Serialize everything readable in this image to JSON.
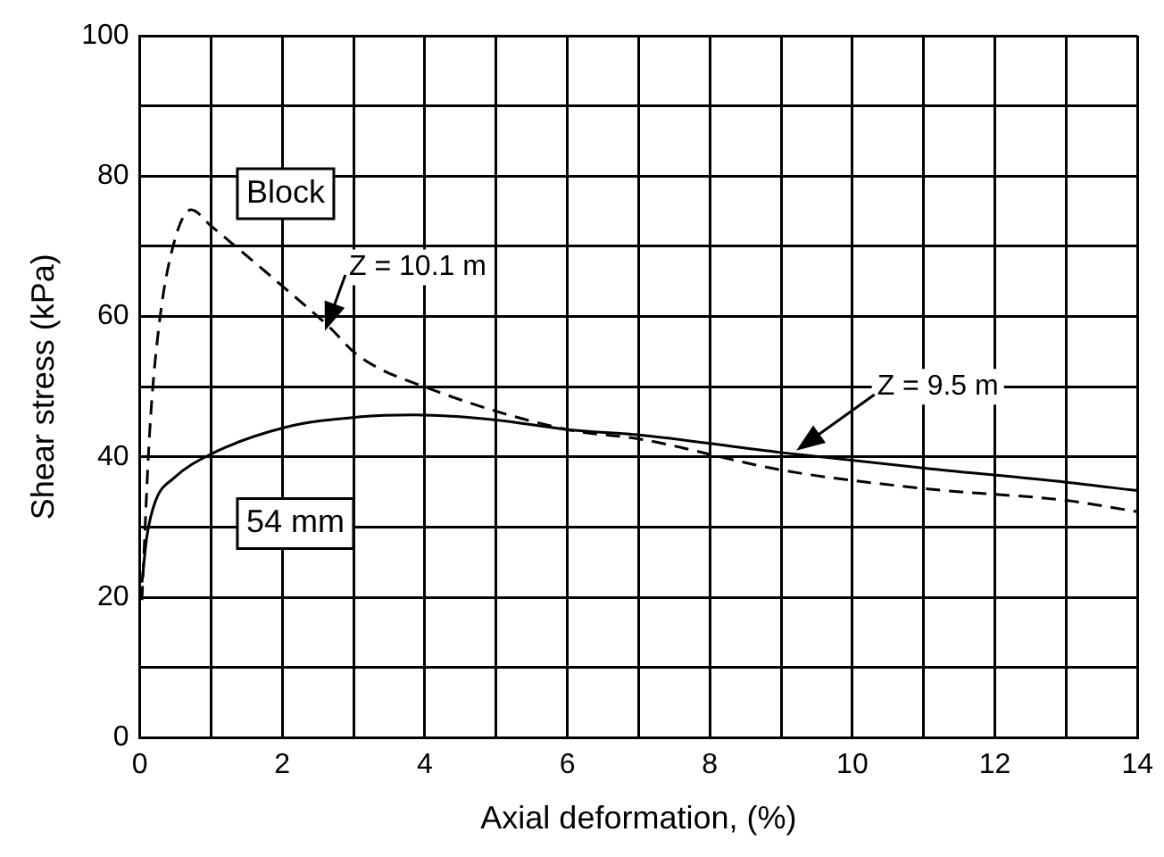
{
  "chart_data": {
    "type": "line",
    "xlabel": "Axial deformation, (%)",
    "ylabel": "Shear stress (kPa)",
    "xlim": [
      0,
      14
    ],
    "ylim": [
      0,
      100
    ],
    "xticks": [
      0,
      {
        "value": 1,
        "label": null
      },
      2,
      {
        "value": 3,
        "label": null
      },
      4,
      {
        "value": 5,
        "label": null
      },
      6,
      {
        "value": 7,
        "label": null
      },
      8,
      {
        "value": 9,
        "label": null
      },
      10,
      {
        "value": 11,
        "label": null
      },
      12,
      {
        "value": 13,
        "label": null
      },
      14
    ],
    "yticks": [
      0,
      {
        "value": 10,
        "label": null
      },
      20,
      {
        "value": 30,
        "label": null
      },
      40,
      {
        "value": 50,
        "label": null
      },
      60,
      {
        "value": 70,
        "label": null
      },
      80,
      {
        "value": 90,
        "label": null
      },
      100
    ],
    "grid": true,
    "legend": false,
    "marker": "none",
    "series": [
      {
        "name": "Block",
        "color": "#000000",
        "line_style": "dashed",
        "x": [
          0.03,
          0.14,
          0.27,
          0.48,
          0.72,
          1.0,
          2.04,
          2.64,
          3.07,
          4.1,
          6.0,
          7.04,
          9.02,
          11.1,
          13.0,
          14.0
        ],
        "values": [
          19.6,
          43.7,
          58.7,
          70.5,
          75.2,
          72.9,
          64,
          58.7,
          54.4,
          49.6,
          43.9,
          42.5,
          38.1,
          35.4,
          33.8,
          32.2
        ]
      },
      {
        "name": "54 mm",
        "color": "#000000",
        "line_style": "solid",
        "x": [
          0.03,
          0.1,
          0.22,
          0.48,
          1.0,
          2.04,
          3.07,
          3.85,
          4.97,
          6.0,
          7.04,
          9.02,
          11.1,
          13.0,
          14.0
        ],
        "values": [
          22.1,
          28.7,
          33.7,
          37,
          40.4,
          44.2,
          45.7,
          46,
          45.3,
          43.9,
          43.1,
          40.6,
          38.3,
          36.4,
          35.2
        ]
      }
    ],
    "annotations": [
      "Z = 10.1 m",
      "Z = 9.5 m"
    ]
  }
}
